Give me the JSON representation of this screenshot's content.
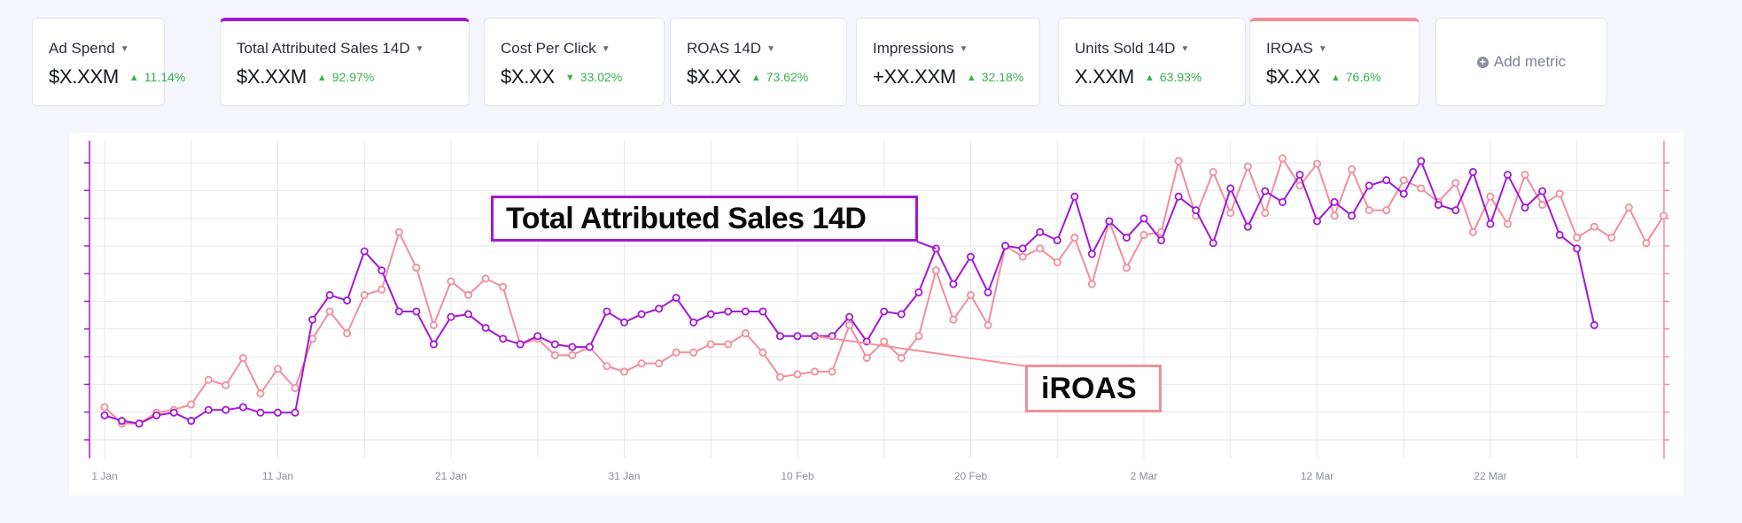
{
  "metrics": [
    {
      "name": "Ad Spend",
      "value": "$X.XXM",
      "delta": "11.14%",
      "direction": "up",
      "selected": null
    },
    {
      "name": "Total Attributed Sales 14D",
      "value": "$X.XXM",
      "delta": "92.97%",
      "direction": "up",
      "selected": "purple"
    },
    {
      "name": "Cost Per Click",
      "value": "$X.XX",
      "delta": "33.02%",
      "direction": "down",
      "selected": null
    },
    {
      "name": "ROAS 14D",
      "value": "$X.XX",
      "delta": "73.62%",
      "direction": "up",
      "selected": null
    },
    {
      "name": "Impressions",
      "value": "+XX.XXM",
      "delta": "32.18%",
      "direction": "up",
      "selected": null
    },
    {
      "name": "Units Sold 14D",
      "value": "X.XXM",
      "delta": "63.93%",
      "direction": "up",
      "selected": null
    },
    {
      "name": "IROAS",
      "value": "$X.XX",
      "delta": "76.6%",
      "direction": "up",
      "selected": "pink"
    }
  ],
  "add_metric_label": "Add metric",
  "callouts": {
    "sales": "Total Attributed Sales 14D",
    "iroas": "iROAS"
  },
  "colors": {
    "sales": "#a317d6",
    "iroas": "#f38d9c",
    "up": "#37b24d",
    "grid": "#e6e7ee"
  },
  "chart_data": {
    "type": "line",
    "x_start": "1 Jan",
    "xtick_labels": [
      "1 Jan",
      "11 Jan",
      "21 Jan",
      "31 Jan",
      "10 Feb",
      "20 Feb",
      "2 Mar",
      "12 Mar",
      "22 Mar"
    ],
    "xtick_positions": [
      0,
      10,
      20,
      30,
      40,
      50,
      60,
      70,
      80
    ],
    "ylim": [
      0,
      11
    ],
    "grid": true,
    "legend": "callout labels",
    "series": [
      {
        "name": "Total Attributed Sales 14D",
        "axis": "left",
        "color": "#a317d6",
        "values": [
          0.7,
          0.5,
          0.4,
          0.7,
          0.8,
          0.5,
          0.9,
          0.9,
          1.0,
          0.8,
          0.8,
          0.8,
          4.2,
          5.1,
          4.9,
          6.7,
          6.0,
          4.5,
          4.5,
          3.3,
          4.3,
          4.4,
          3.9,
          3.5,
          3.3,
          3.6,
          3.3,
          3.2,
          3.2,
          4.5,
          4.1,
          4.4,
          4.6,
          5.0,
          4.1,
          4.4,
          4.5,
          4.5,
          4.5,
          3.6,
          3.6,
          3.6,
          3.6,
          4.3,
          3.4,
          4.5,
          4.4,
          5.2,
          6.8,
          5.5,
          6.5,
          5.2,
          6.9,
          6.8,
          7.4,
          7.1,
          8.7,
          6.6,
          7.8,
          7.2,
          7.9,
          7.1,
          8.7,
          8.2,
          7.0,
          9.0,
          7.6,
          8.9,
          8.5,
          9.5,
          7.8,
          8.5,
          8.0,
          9.1,
          9.3,
          8.8,
          10.0,
          8.4,
          8.2,
          9.6,
          7.7,
          9.5,
          8.3,
          8.9,
          7.3,
          6.8,
          4.0
        ]
      },
      {
        "name": "iROAS",
        "axis": "right",
        "color": "#f38d9c",
        "values": [
          1.0,
          0.4,
          0.4,
          0.8,
          0.9,
          1.1,
          2.0,
          1.8,
          2.8,
          1.5,
          2.4,
          1.7,
          3.5,
          4.5,
          3.7,
          5.1,
          5.3,
          7.4,
          6.1,
          4.0,
          5.6,
          5.1,
          5.7,
          5.4,
          3.3,
          3.5,
          2.9,
          2.9,
          3.2,
          2.5,
          2.3,
          2.6,
          2.6,
          3.0,
          3.0,
          3.3,
          3.3,
          3.7,
          3.0,
          2.1,
          2.2,
          2.3,
          2.3,
          4.0,
          2.8,
          3.4,
          2.8,
          3.6,
          6.0,
          4.2,
          5.1,
          4.0,
          6.9,
          6.5,
          6.8,
          6.3,
          7.2,
          5.5,
          7.8,
          6.1,
          7.3,
          7.4,
          10.0,
          8.0,
          9.6,
          8.1,
          9.8,
          8.1,
          10.1,
          9.1,
          9.9,
          8.0,
          9.7,
          8.2,
          8.2,
          9.3,
          9.0,
          8.5,
          9.2,
          7.4,
          8.7,
          7.7,
          9.5,
          8.4,
          8.8,
          7.2,
          7.6,
          7.2,
          8.3,
          7.0,
          8.0
        ]
      }
    ]
  }
}
